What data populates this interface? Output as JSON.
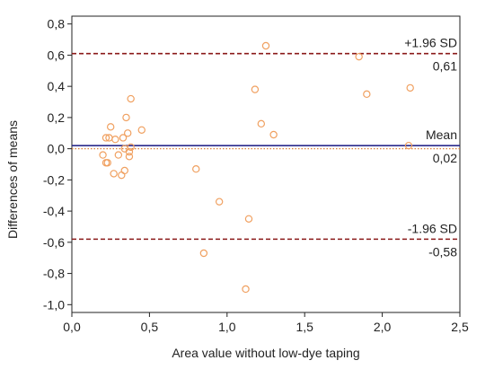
{
  "chart_data": {
    "type": "scatter",
    "title": "",
    "xlabel": "Area value without low-dye taping",
    "ylabel": "Differences of means",
    "xlim": [
      0,
      2.5
    ],
    "ylim": [
      -1.05,
      0.85
    ],
    "x_ticks": [
      0,
      0.5,
      1,
      1.5,
      2,
      2.5
    ],
    "x_tick_labels": [
      "0,0",
      "0,5",
      "1,0",
      "1,5",
      "2,0",
      "2,5"
    ],
    "y_ticks": [
      -1,
      -0.8,
      -0.6,
      -0.4,
      -0.2,
      0,
      0.2,
      0.4,
      0.6,
      0.8
    ],
    "y_tick_labels": [
      "-1,0",
      "-0,8",
      "-0,6",
      "-0,4",
      "-0,2",
      "0,0",
      "0,2",
      "0,4",
      "0,6",
      "0,8"
    ],
    "grid": false,
    "legend": "none",
    "zero_line": {
      "y": 0,
      "color": "#d9823b",
      "style": "dotted"
    },
    "reference_lines": [
      {
        "name": "upper-loa",
        "label": "+1.96 SD",
        "value_label": "0,61",
        "y": 0.61,
        "color": "#8b1a1a",
        "style": "dashed"
      },
      {
        "name": "mean",
        "label": "Mean",
        "value_label": "0,02",
        "y": 0.02,
        "color": "#2a2a8c",
        "style": "solid"
      },
      {
        "name": "lower-loa",
        "label": "-1.96 SD",
        "value_label": "-0,58",
        "y": -0.58,
        "color": "#8b1a1a",
        "style": "dashed"
      }
    ],
    "series": [
      {
        "color": "#f0a060",
        "marker": "open-circle",
        "x": [
          0.2,
          0.22,
          0.22,
          0.23,
          0.24,
          0.25,
          0.27,
          0.28,
          0.3,
          0.32,
          0.33,
          0.34,
          0.34,
          0.35,
          0.36,
          0.37,
          0.37,
          0.38,
          0.38,
          0.45,
          0.8,
          0.85,
          0.95,
          1.12,
          1.14,
          1.18,
          1.22,
          1.25,
          1.3,
          1.85,
          1.9,
          2.17,
          2.18
        ],
        "y": [
          -0.04,
          -0.09,
          0.07,
          -0.09,
          0.07,
          0.14,
          -0.16,
          0.06,
          -0.04,
          -0.17,
          0.07,
          -0.14,
          0.0,
          0.2,
          0.1,
          -0.02,
          -0.05,
          0.32,
          0.01,
          0.12,
          -0.13,
          -0.67,
          -0.34,
          -0.9,
          -0.45,
          0.38,
          0.16,
          0.66,
          0.09,
          0.59,
          0.35,
          0.02,
          0.39
        ]
      }
    ]
  }
}
